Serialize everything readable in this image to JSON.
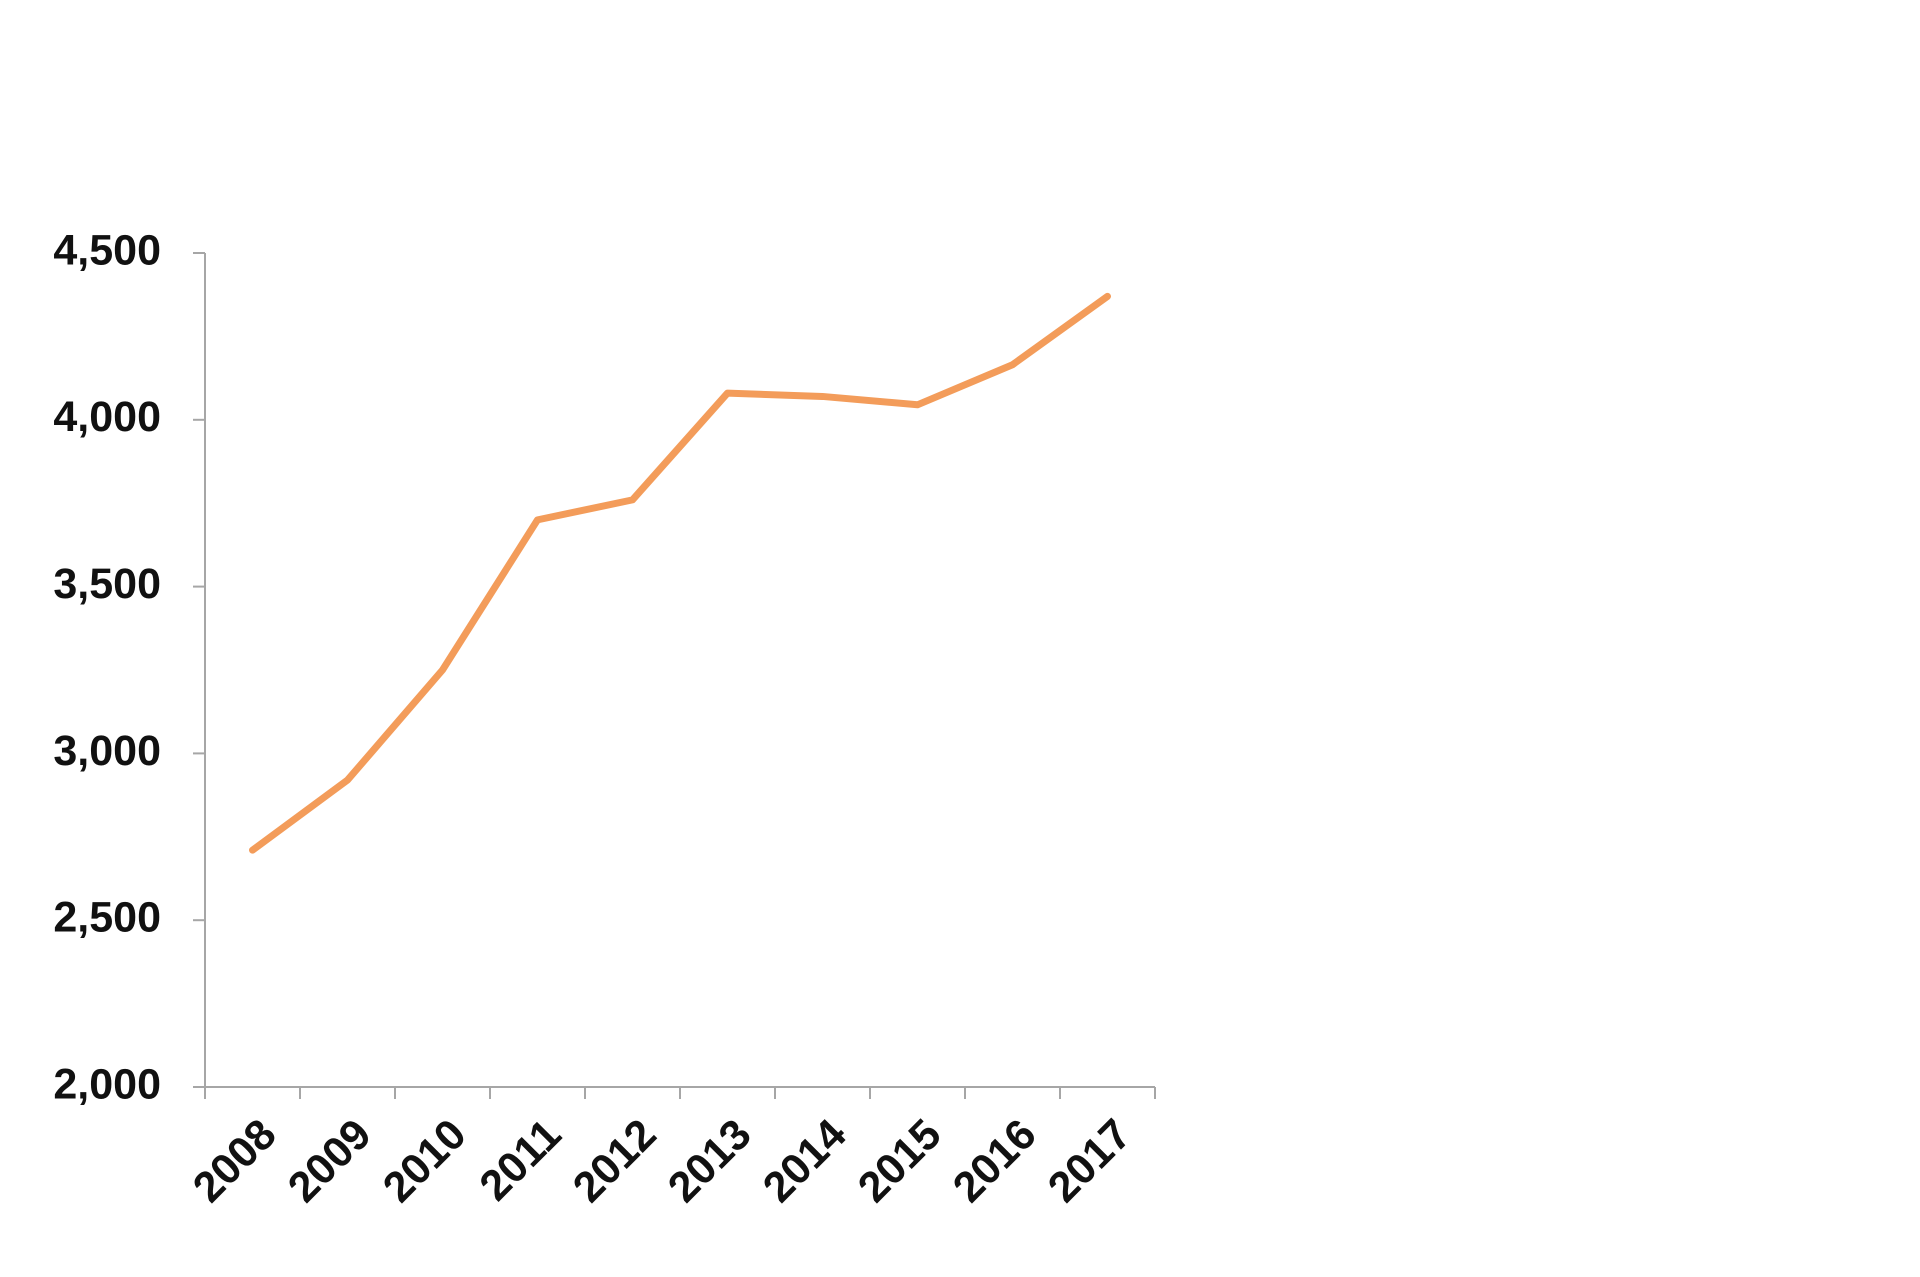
{
  "chart_data": {
    "type": "line",
    "categories": [
      "2008",
      "2009",
      "2010",
      "2011",
      "2012",
      "2013",
      "2014",
      "2015",
      "2016",
      "2017"
    ],
    "values": [
      2710,
      2920,
      3250,
      3700,
      3760,
      4080,
      4070,
      4045,
      4165,
      4370
    ],
    "color": "#f39c5a",
    "ylim": [
      2000,
      4500
    ],
    "yticks": [
      {
        "value": 2000,
        "label": "2,000"
      },
      {
        "value": 2500,
        "label": "2,500"
      },
      {
        "value": 3000,
        "label": "3,000"
      },
      {
        "value": 3500,
        "label": "3,500"
      },
      {
        "value": 4000,
        "label": "4,000"
      },
      {
        "value": 4500,
        "label": "4,500"
      }
    ]
  }
}
